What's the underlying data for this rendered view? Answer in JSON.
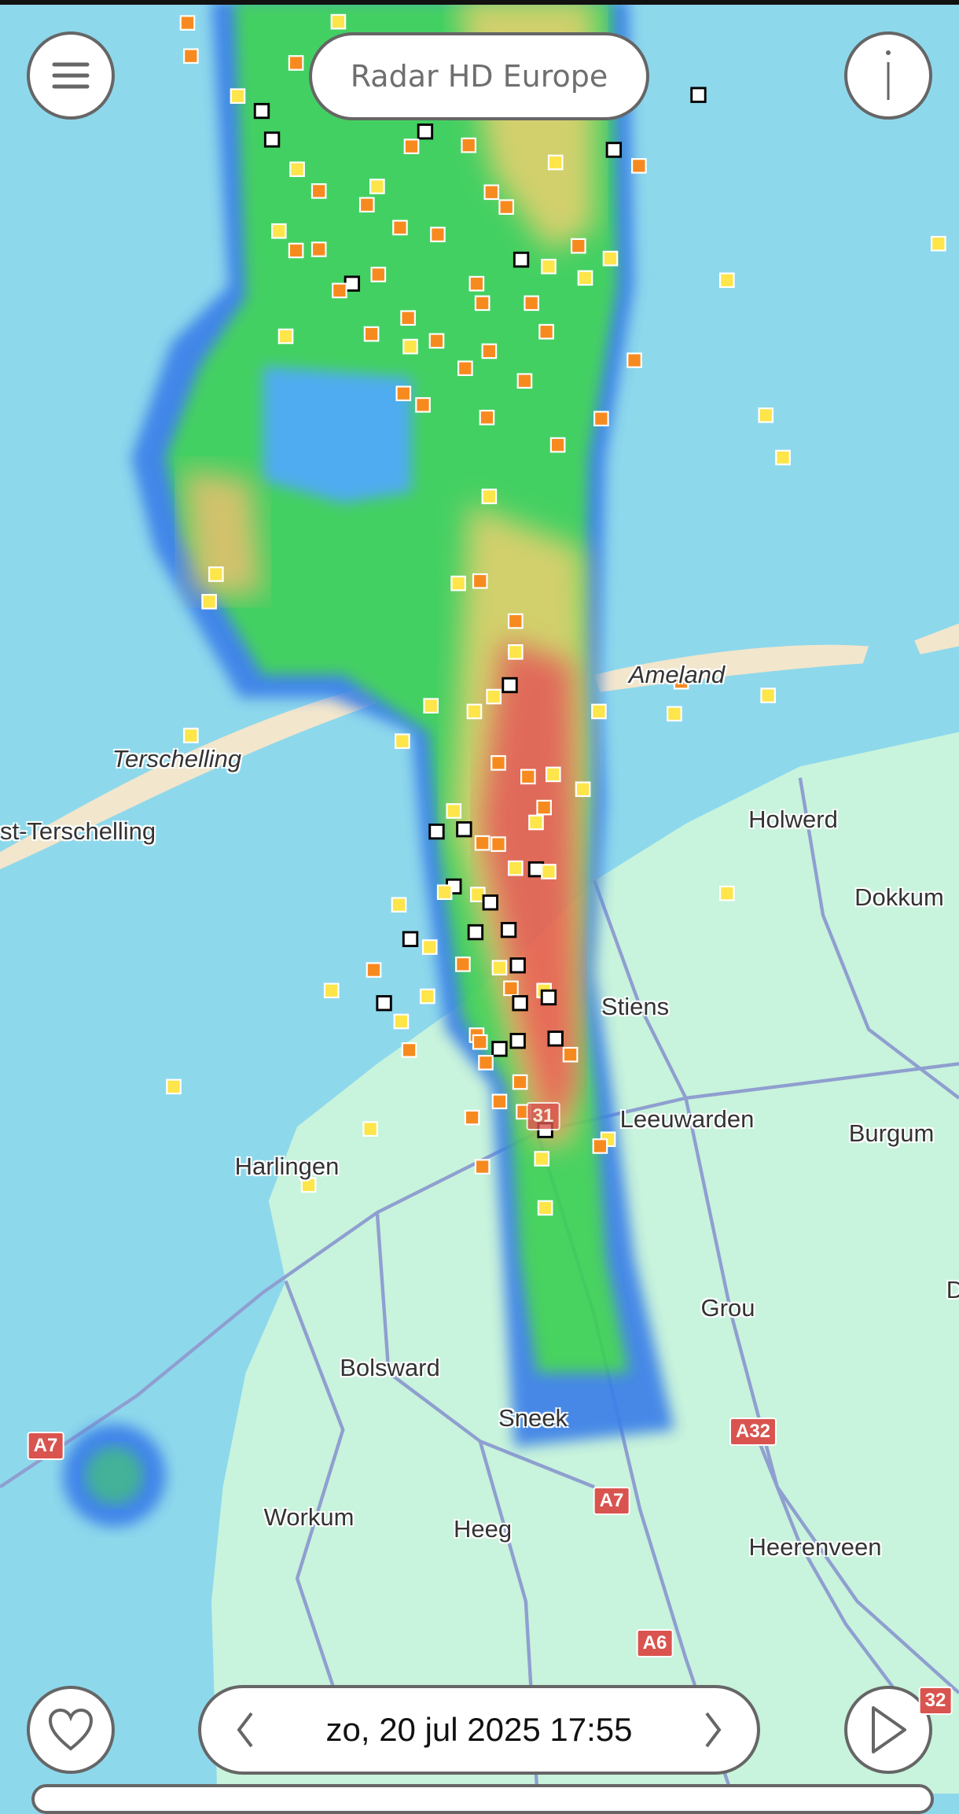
{
  "header": {
    "title": "Radar HD Europe",
    "menu_icon": "hamburger-menu-icon",
    "info_icon": "info-icon"
  },
  "footer": {
    "datetime": "zo, 20 jul 2025 17:55",
    "prev_icon": "chevron-left-icon",
    "next_icon": "chevron-right-icon",
    "favorite_icon": "heart-icon",
    "play_icon": "play-icon"
  },
  "map": {
    "labels": {
      "ameland": "Ameland",
      "terschelling": "Terschelling",
      "west_terschelling": "st-Terschelling",
      "holwerd": "Holwerd",
      "dokkum": "Dokkum",
      "stiens": "Stiens",
      "leeuwarden": "Leeuwarden",
      "burgum": "Burgum",
      "harlingen": "Harlingen",
      "grou": "Grou",
      "bolsward": "Bolsward",
      "sneek": "Sneek",
      "workum": "Workum",
      "heeg": "Heeg",
      "heerenveen": "Heerenveen",
      "d_partial": "D"
    },
    "shields": {
      "a7_west": "A7",
      "a32": "A32",
      "a7_south": "A7",
      "a6": "A6",
      "a32_edge": "32",
      "a31": "31"
    },
    "colors": {
      "sea": "#8ed8ec",
      "land": "#c8f3dc",
      "sand": "#f2e6cc",
      "road": "#8f9fd0",
      "shield": "#d9544f"
    }
  }
}
